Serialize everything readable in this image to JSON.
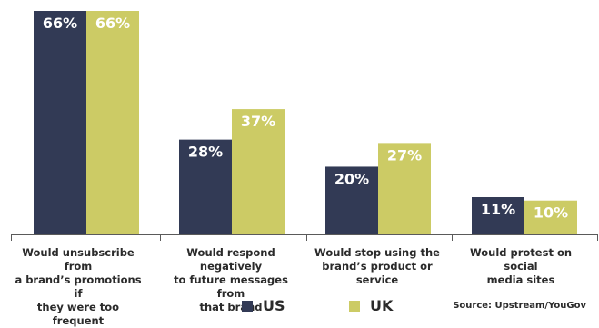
{
  "chart_data": {
    "type": "bar",
    "categories": [
      "Would unsubscribe from\na brand’s promotions if\nthey were too frequent",
      "Would respond negatively\nto future messages from\nthat brand",
      "Would stop using the\nbrand’s product or service",
      "Would protest on social\nmedia sites"
    ],
    "series": [
      {
        "name": "US",
        "values": [
          66,
          28,
          20,
          11
        ],
        "value_labels": [
          "66%",
          "28%",
          "20%",
          "11%"
        ],
        "color": "#323a55"
      },
      {
        "name": "UK",
        "values": [
          66,
          37,
          27,
          10
        ],
        "value_labels": [
          "66%",
          "37%",
          "27%",
          "10%"
        ],
        "color": "#cccb65"
      }
    ],
    "ylim": [
      0,
      66
    ],
    "grid": false,
    "legend_placement": "bottom-center"
  },
  "legend": {
    "items": [
      {
        "label": "US",
        "color": "#323a55"
      },
      {
        "label": "UK",
        "color": "#cccb65"
      }
    ]
  },
  "source": "Source: Upstream/YouGov"
}
